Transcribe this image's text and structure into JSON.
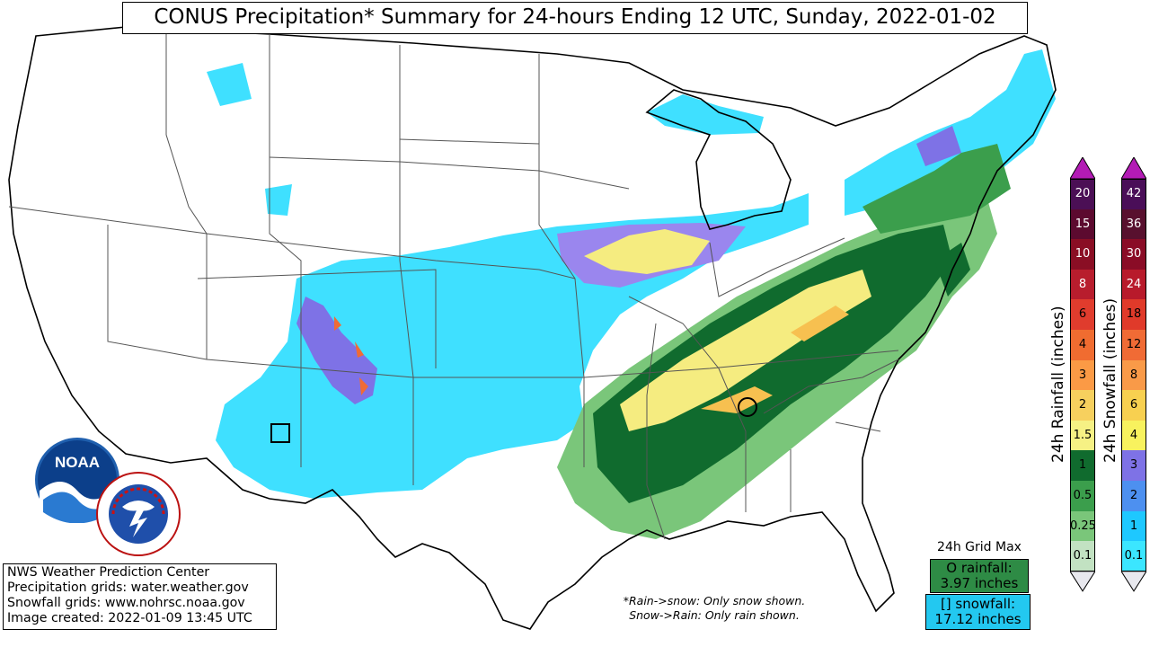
{
  "title": "CONUS Precipitation* Summary for 24-hours Ending 12 UTC, Sunday, 2022-01-02",
  "info": {
    "line1": "NWS Weather Prediction Center",
    "line2": "Precipitation grids: water.weather.gov",
    "line3": "Snowfall grids: www.nohrsc.noaa.gov",
    "line4": "Image created: 2022-01-09 13:45 UTC"
  },
  "note": {
    "line1": "*Rain->snow: Only snow shown.",
    "line2": "Snow->Rain: Only rain shown."
  },
  "grid_max": {
    "title": "24h Grid Max",
    "rain_line1": "O rainfall:",
    "rain_line2": "3.97 inches",
    "snow_line1": "[] snowfall:",
    "snow_line2": "17.12 inches",
    "rain_color": "#2e8b45",
    "snow_color": "#23c8f0"
  },
  "logos": {
    "noaa": "NOAA",
    "nws": "NATIONAL WEATHER SERVICE"
  },
  "rain_legend": {
    "label": "24h Rainfall (inches)",
    "levels": [
      "0.1",
      "0.25",
      "0.5",
      "1",
      "1.5",
      "2",
      "3",
      "4",
      "6",
      "8",
      "10",
      "15",
      "20"
    ],
    "colors": [
      "#c2e2c2",
      "#7ac67a",
      "#3b9e4c",
      "#106b2e",
      "#f6f184",
      "#f7d05e",
      "#fb9a45",
      "#f06c30",
      "#e03c2d",
      "#b81d2d",
      "#8a0e24",
      "#5c0a2f",
      "#4b0f55"
    ],
    "arrow_color": "#b31bb5"
  },
  "snow_legend": {
    "label": "24h Snowfall (inches)",
    "levels": [
      "0.1",
      "1",
      "2",
      "3",
      "4",
      "6",
      "8",
      "12",
      "18",
      "24",
      "30",
      "36",
      "42"
    ],
    "colors": [
      "#3be6ff",
      "#1ec8ff",
      "#4d90f0",
      "#7e72e6",
      "#f8f25e",
      "#f8d050",
      "#f99a48",
      "#f06b35",
      "#e03a2a",
      "#b81a2b",
      "#8a0c26",
      "#58102e",
      "#4a0e58"
    ],
    "arrow_color": "#b31bb5"
  },
  "colors": {
    "state_lines": "#555555",
    "coast": "#000000",
    "lake_water": "#ffffff"
  }
}
